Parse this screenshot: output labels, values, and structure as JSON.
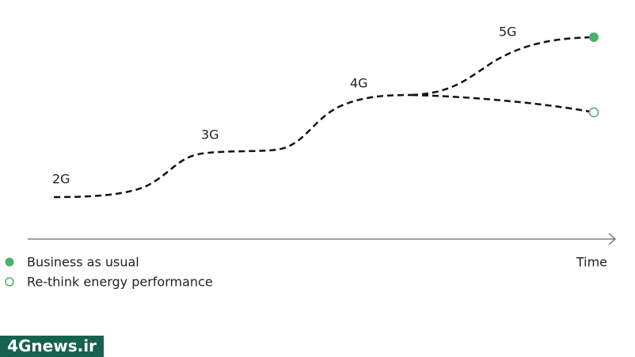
{
  "diagram": {
    "stages": [
      "2G",
      "3G",
      "4G",
      "5G"
    ],
    "axis_label": "Time",
    "legend": [
      "Business as usual",
      "Re-think energy performance"
    ]
  },
  "watermark": "4Gnews.ir"
}
